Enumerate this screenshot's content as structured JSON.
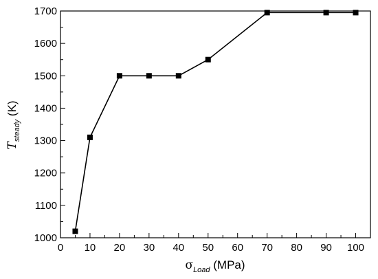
{
  "chart_data": {
    "type": "line",
    "series": [
      {
        "x": [
          5,
          10,
          20,
          30,
          40,
          50,
          70,
          90,
          100
        ],
        "y": [
          1020,
          1310,
          1500,
          1500,
          1500,
          1550,
          1695,
          1695,
          1695
        ],
        "color": "#000000",
        "marker": "square"
      }
    ],
    "xlabel": {
      "symbol": "σ",
      "sub": "Load",
      "unit": " (MPa)"
    },
    "ylabel": {
      "symbol": "T",
      "sub": "steady",
      "unit": " (K)"
    },
    "xlim": [
      0,
      105
    ],
    "ylim": [
      1000,
      1700
    ],
    "xticks": [
      0,
      10,
      20,
      30,
      40,
      50,
      60,
      70,
      80,
      90,
      100
    ],
    "yticks": [
      1000,
      1100,
      1200,
      1300,
      1400,
      1500,
      1600,
      1700
    ],
    "grid": false,
    "legend": "none"
  }
}
